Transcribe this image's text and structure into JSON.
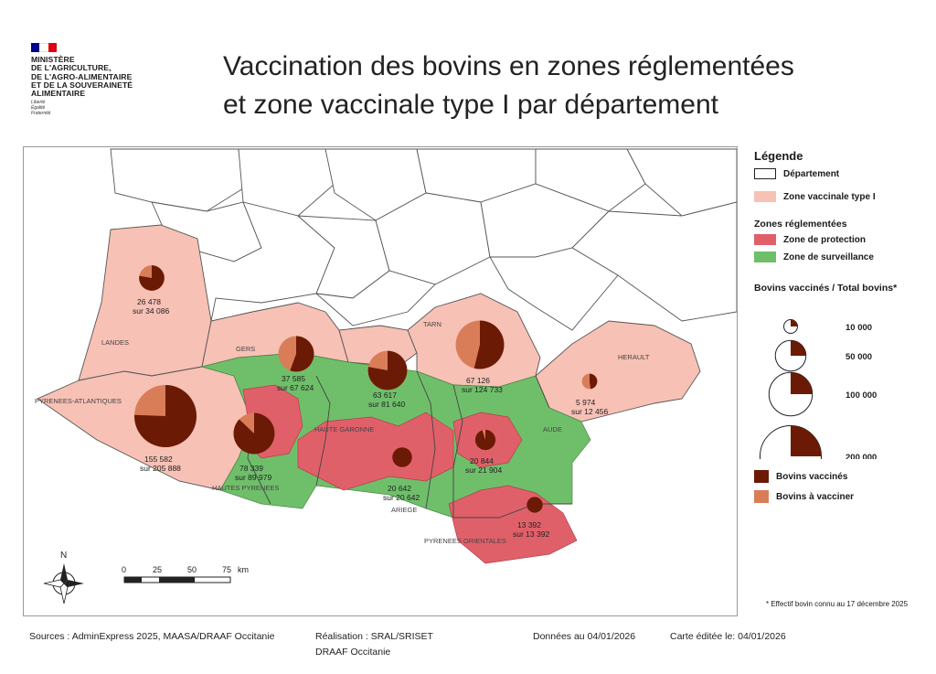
{
  "header": {
    "ministry_lines": [
      "MINISTÈRE",
      "DE L'AGRICULTURE,",
      "DE L'AGRO-ALIMENTAIRE",
      "ET DE LA SOUVERAINETÉ",
      "ALIMENTAIRE"
    ],
    "motto": [
      "Liberté",
      "Égalité",
      "Fraternité"
    ],
    "title_line1": "Vaccination  des bovins en zones réglementées",
    "title_line2": "et zone vaccinale type I par département"
  },
  "colors": {
    "zone_vaccinale": "#f7c1b5",
    "zone_protection": "#e0606a",
    "zone_surveillance": "#6fbf6a",
    "bovins_vaccines": "#6b1a05",
    "bovins_a_vacciner": "#d97d59",
    "departement_border": "#555555"
  },
  "legend": {
    "title": "Légende",
    "departement": "Département",
    "zone_vaccinale": "Zone vaccinale type I",
    "zones_title": "Zones réglementées",
    "zone_protection": "Zone de protection",
    "zone_surveillance": "Zone de surveillance",
    "bovins_title": "Bovins vaccinés / Total bovins*",
    "sizes": [
      {
        "label": "10 000",
        "value": 10000
      },
      {
        "label": "50 000",
        "value": 50000
      },
      {
        "label": "100 000",
        "value": 100000
      },
      {
        "label": "200 000",
        "value": 200000
      }
    ],
    "bovins_vaccines": "Bovins vaccinés",
    "bovins_a_vacciner": "Bovins à vacciner"
  },
  "map": {
    "departments": [
      {
        "name": "LANDES",
        "vaccinated": 26478,
        "total": 34086,
        "label_l1": "26 478",
        "label_l2": "sur 34 086"
      },
      {
        "name": "GERS",
        "vaccinated": 37585,
        "total": 67624,
        "label_l1": "37 585",
        "label_l2": "sur 67 624"
      },
      {
        "name": "",
        "vaccinated": 63617,
        "total": 81640,
        "label_l1": "63 617",
        "label_l2": "sur 81 640"
      },
      {
        "name": "TARN",
        "vaccinated": 67126,
        "total": 124733,
        "label_l1": "67 126",
        "label_l2": "sur 124 733"
      },
      {
        "name": "HERAULT",
        "vaccinated": 5974,
        "total": 12456,
        "label_l1": "5 974",
        "label_l2": "sur 12 456"
      },
      {
        "name": "PYRENEES-ATLANTIQUES",
        "vaccinated": 155582,
        "total": 205888,
        "label_l1": "155 582",
        "label_l2": "sur 205 888"
      },
      {
        "name": "HAUTES PYRENEES",
        "vaccinated": 78339,
        "total": 89979,
        "label_l1": "78 339",
        "label_l2": "sur 89 979"
      },
      {
        "name": "HAUTE GARONNE",
        "vaccinated": 0,
        "total": 0,
        "label_l1": "",
        "label_l2": ""
      },
      {
        "name": "ARIEGE",
        "vaccinated": 20642,
        "total": 20642,
        "label_l1": "20 642",
        "label_l2": "sur 20 642"
      },
      {
        "name": "AUDE",
        "vaccinated": 20844,
        "total": 21904,
        "label_l1": "20 844",
        "label_l2": "sur 21 904"
      },
      {
        "name": "PYRENEES ORIENTALES",
        "vaccinated": 13392,
        "total": 13392,
        "label_l1": "13 392",
        "label_l2": "sur 13 392"
      }
    ],
    "scale_ticks": [
      "0",
      "25",
      "50",
      "75"
    ],
    "scale_unit": "km",
    "north_label": "N"
  },
  "footer": {
    "sources": "Sources : AdminExpress 2025, MAASA/DRAAF Occitanie",
    "realisation_l1": "Réalisation : SRAL/SRISET",
    "realisation_l2": "DRAAF Occitanie",
    "donnees": "Données au 04/01/2026",
    "carte": "Carte éditée le:  04/01/2026",
    "footnote": "* Effectif bovin connu au 17 décembre 2025"
  }
}
